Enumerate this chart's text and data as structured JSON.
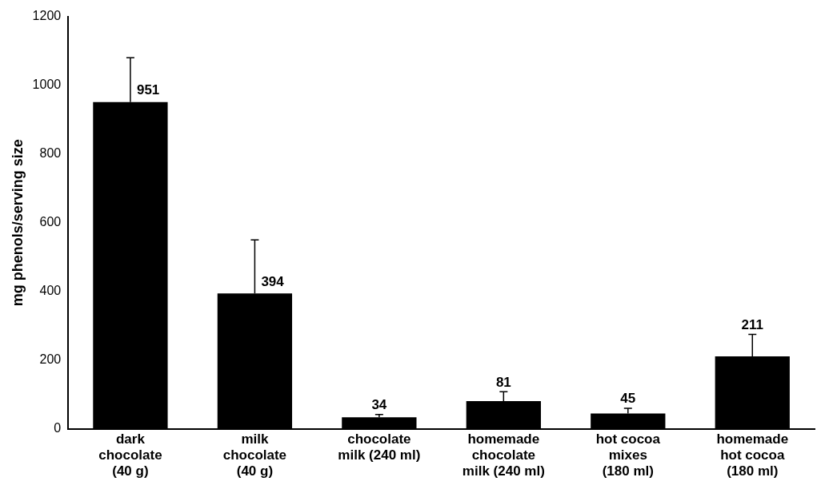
{
  "chart_data": {
    "type": "bar",
    "ylabel": "mg phenols/serving size",
    "categories": [
      "dark\nchocolate\n(40 g)",
      "milk\nchocolate\n(40 g)",
      "chocolate\nmilk (240 ml)",
      "homemade\nchocolate\nmilk (240 ml)",
      "hot cocoa\nmixes\n(180 ml)",
      "homemade\nhot cocoa\n(180 ml)"
    ],
    "values": [
      951,
      394,
      34,
      81,
      45,
      211
    ],
    "errors": [
      [
        951,
        1080
      ],
      [
        394,
        550
      ],
      [
        34,
        42
      ],
      [
        81,
        108
      ],
      [
        45,
        60
      ],
      [
        211,
        275
      ]
    ],
    "color": "#000000",
    "ylim": [
      0,
      1200
    ],
    "yticks": [
      0,
      200,
      400,
      600,
      800,
      1000,
      1200
    ],
    "grid": false,
    "data_labels": true,
    "legend": false
  }
}
